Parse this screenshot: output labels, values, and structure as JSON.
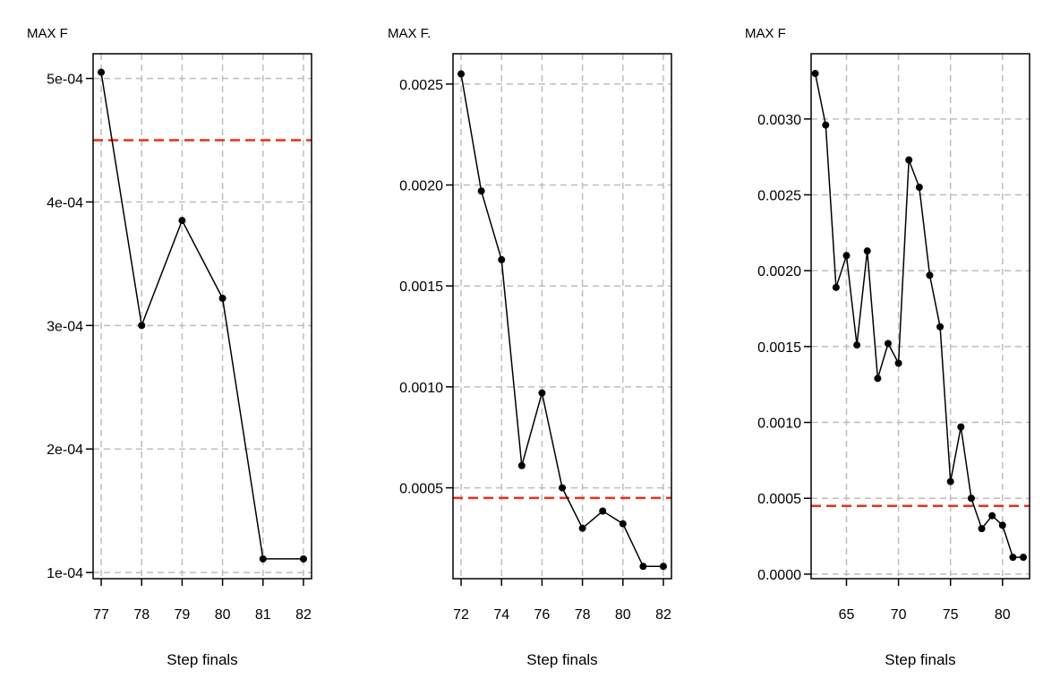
{
  "colors": {
    "threshold": "#e8311a",
    "grid": "#bdbdbd",
    "series": "#000000"
  },
  "chart_data": [
    {
      "type": "line",
      "title": "MAX F",
      "xlabel": "Step finals",
      "ylabel": "",
      "grid": true,
      "x": [
        77,
        78,
        79,
        80,
        81,
        82
      ],
      "values": [
        0.000505,
        0.0003,
        0.000385,
        0.000322,
        0.000111,
        0.000111
      ],
      "threshold": 0.00045,
      "xlim": [
        76.8,
        82.2
      ],
      "ylim": [
        9.5e-05,
        0.00052
      ],
      "xticks": [
        77,
        78,
        79,
        80,
        81,
        82
      ],
      "xtick_labels": [
        "77",
        "78",
        "79",
        "80",
        "81",
        "82"
      ],
      "yticks": [
        0.0001,
        0.0002,
        0.0003,
        0.0004,
        0.0005
      ],
      "ytick_labels": [
        "1e-04",
        "2e-04",
        "3e-04",
        "4e-04",
        "5e-04"
      ]
    },
    {
      "type": "line",
      "title": "MAX F.",
      "xlabel": "Step finals",
      "ylabel": "",
      "grid": true,
      "x": [
        72,
        73,
        74,
        75,
        76,
        77,
        78,
        79,
        80,
        81,
        82
      ],
      "values": [
        0.00255,
        0.00197,
        0.00163,
        0.00061,
        0.00097,
        0.0005,
        0.0003,
        0.000385,
        0.000322,
        0.000111,
        0.000111
      ],
      "threshold": 0.00045,
      "xlim": [
        71.6,
        82.4
      ],
      "ylim": [
        5e-05,
        0.00265
      ],
      "xticks": [
        72,
        74,
        76,
        78,
        80,
        82
      ],
      "xtick_labels": [
        "72",
        "74",
        "76",
        "78",
        "80",
        "82"
      ],
      "yticks": [
        0.0005,
        0.001,
        0.0015,
        0.002,
        0.0025
      ],
      "ytick_labels": [
        "0.0005",
        "0.0010",
        "0.0015",
        "0.0020",
        "0.0025"
      ]
    },
    {
      "type": "line",
      "title": "MAX F",
      "xlabel": "Step finals",
      "ylabel": "",
      "grid": true,
      "x": [
        62,
        63,
        64,
        65,
        66,
        67,
        68,
        69,
        70,
        71,
        72,
        73,
        74,
        75,
        76,
        77,
        78,
        79,
        80,
        81,
        82
      ],
      "values": [
        0.0033,
        0.00296,
        0.00189,
        0.0021,
        0.00151,
        0.00213,
        0.00129,
        0.00152,
        0.00139,
        0.00273,
        0.00255,
        0.00197,
        0.00163,
        0.00061,
        0.00097,
        0.0005,
        0.0003,
        0.000385,
        0.000322,
        0.000111,
        0.000111
      ],
      "threshold": 0.00045,
      "xlim": [
        61.6,
        82.6
      ],
      "ylim": [
        -3e-05,
        0.00343
      ],
      "xticks": [
        65,
        70,
        75,
        80
      ],
      "xtick_labels": [
        "65",
        "70",
        "75",
        "80"
      ],
      "yticks": [
        0,
        0.0005,
        0.001,
        0.0015,
        0.002,
        0.0025,
        0.003
      ],
      "ytick_labels": [
        "0.0000",
        "0.0005",
        "0.0010",
        "0.0015",
        "0.0020",
        "0.0025",
        "0.0030"
      ]
    }
  ]
}
